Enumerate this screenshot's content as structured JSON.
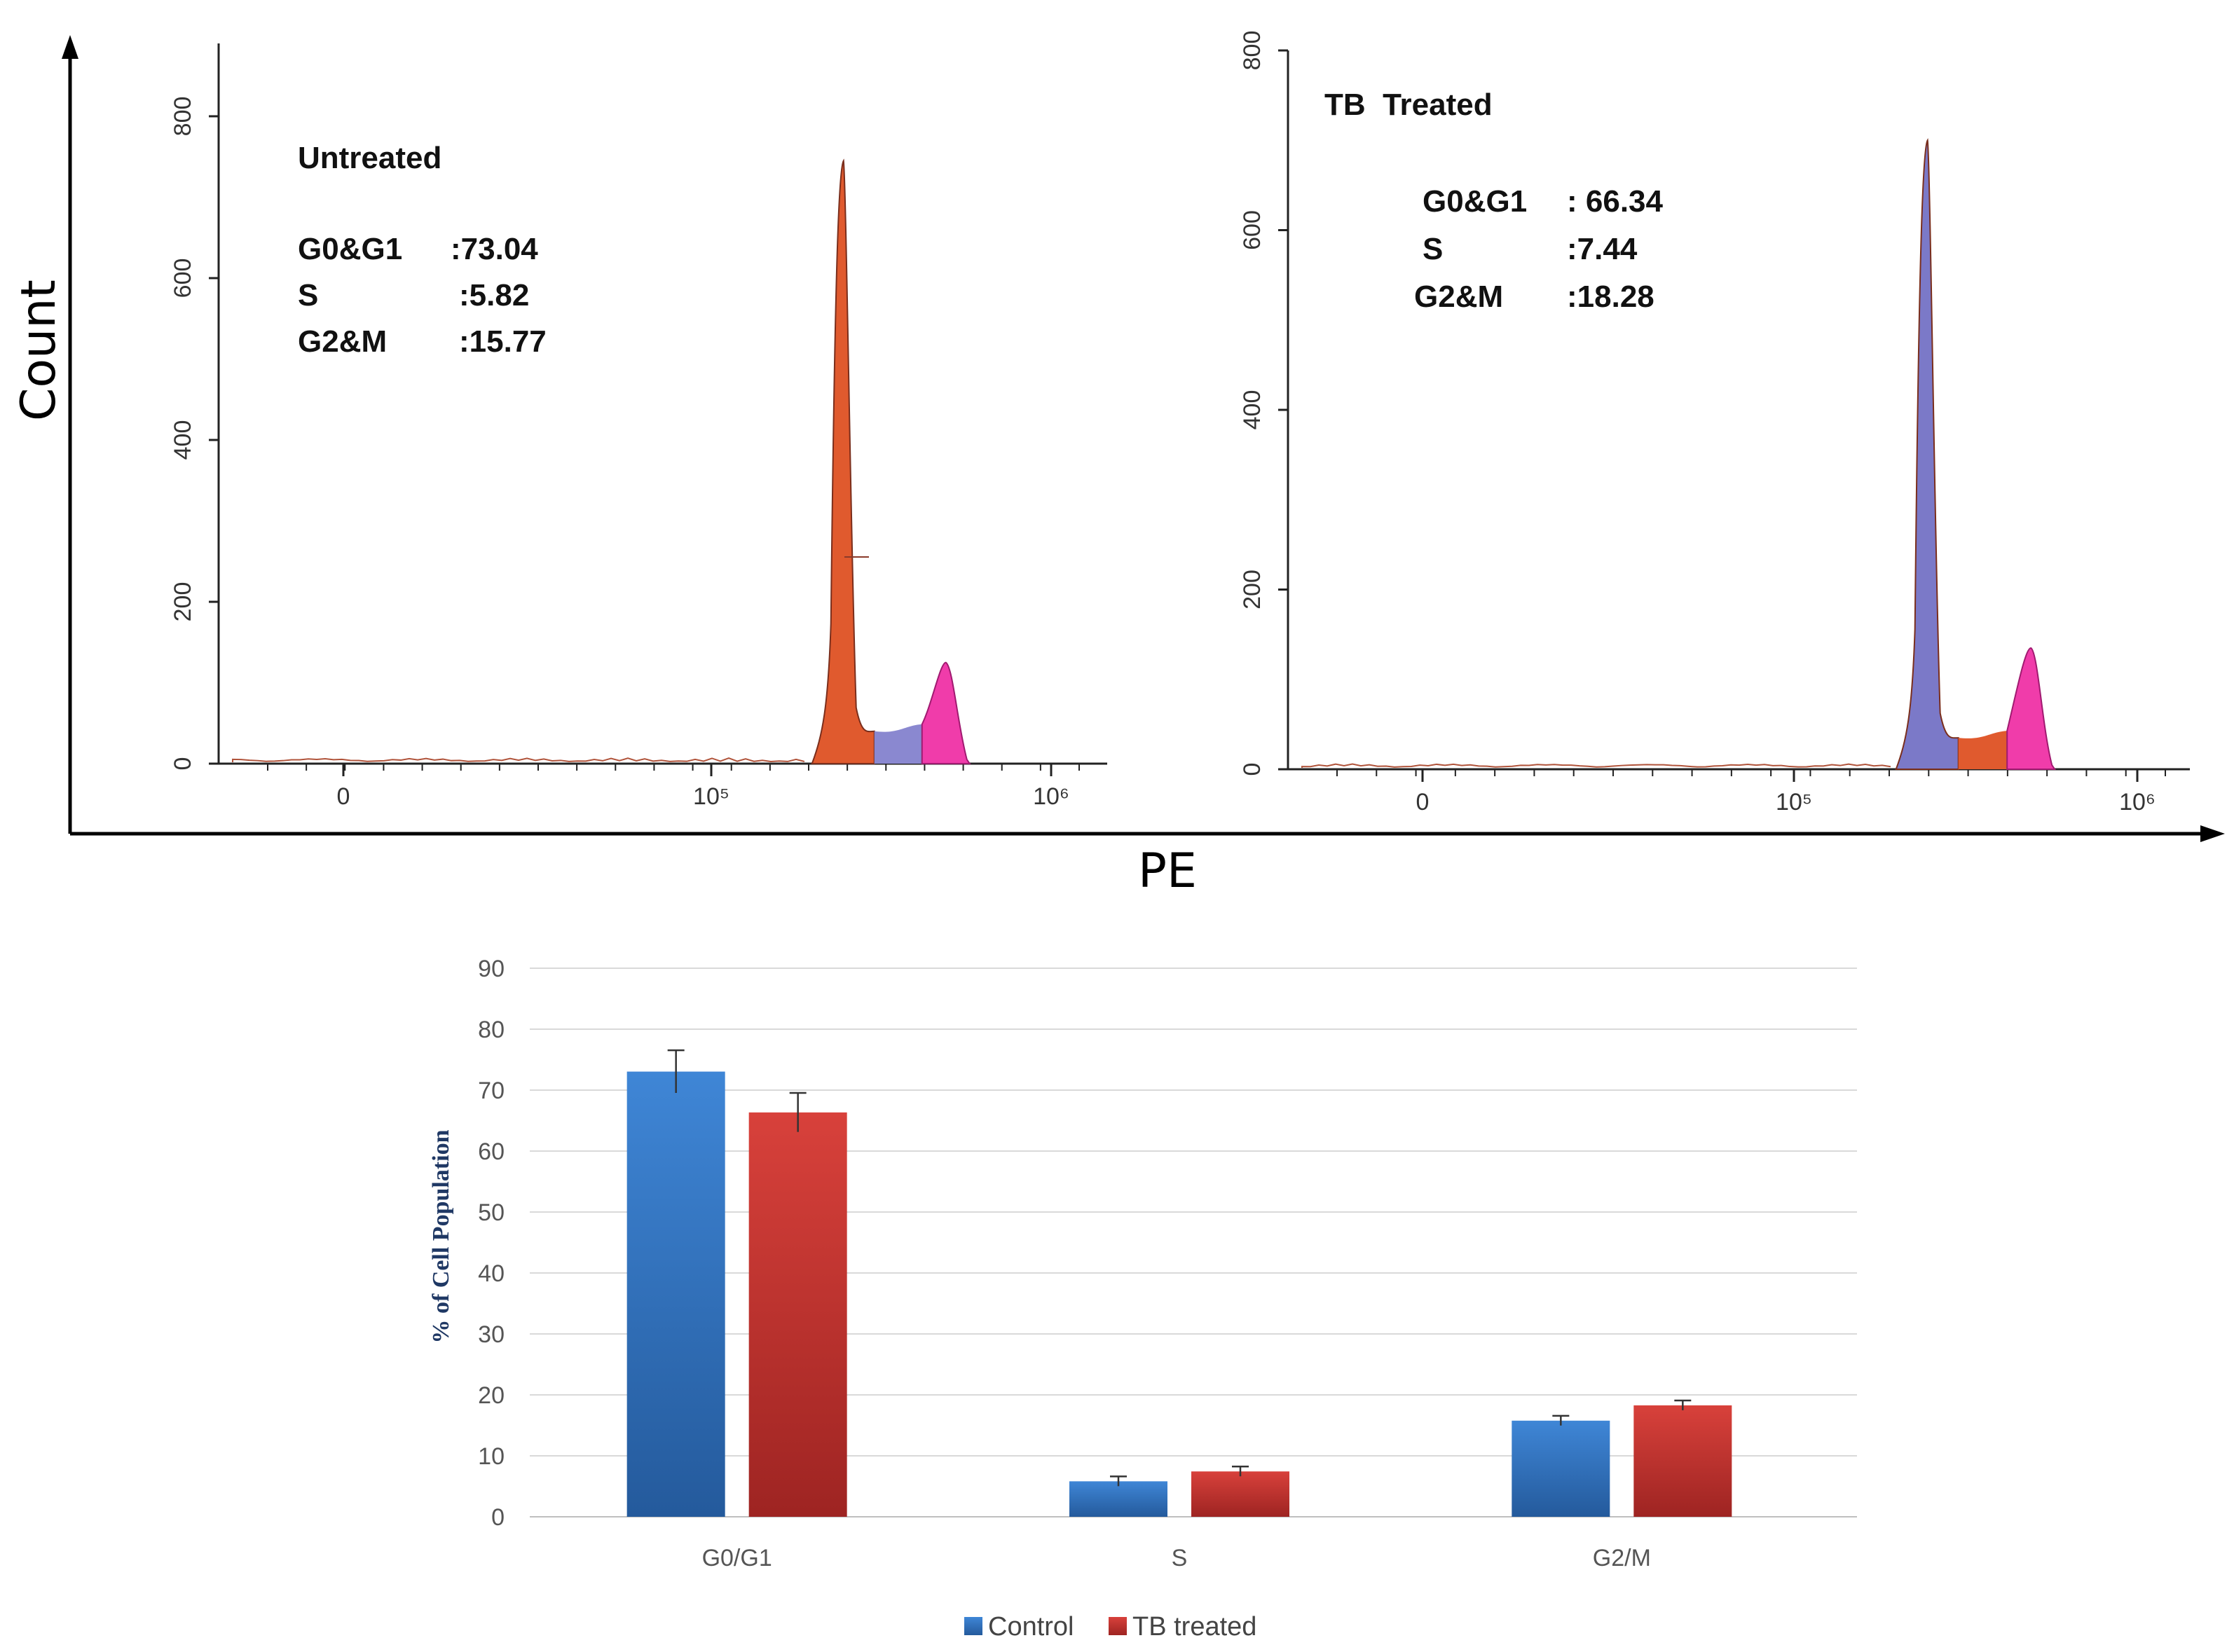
{
  "figure": {
    "y_axis_label": "Count",
    "x_axis_label": "PE"
  },
  "panels": [
    {
      "title": "Untreated",
      "stats": [
        {
          "label": "G0&G1",
          "value": ":73.04"
        },
        {
          "label": "S",
          "value": ":5.82"
        },
        {
          "label": "G2&M",
          "value": ":15.77"
        }
      ]
    },
    {
      "title": "TB  Treated",
      "stats": [
        {
          "label": "G0&G1",
          "value": ": 66.34"
        },
        {
          "label": "S",
          "value": ":7.44"
        },
        {
          "label": "G2&M",
          "value": ":18.28"
        }
      ]
    }
  ],
  "colors": {
    "g1_untreated": "#e05a2e",
    "g1_treated": "#7b79c8",
    "s_phase": "#8a88d0",
    "s_phase_orange": "#e05a2e",
    "g2m": "#f03caa",
    "control": "#2e6fbe",
    "tb_treated": "#c0302e"
  },
  "chart_data": [
    {
      "type": "area",
      "title": "Untreated",
      "ylabel": "Count",
      "xlabel": "PE",
      "ylim": [
        0,
        890
      ],
      "yticks": [
        "0",
        "200",
        "400",
        "600",
        "800"
      ],
      "xticks": [
        "0",
        "10⁵",
        "10⁶"
      ],
      "x_scale": "log",
      "series": [
        {
          "phase": "G0&G1",
          "peak_x": 245000,
          "peak_count": 745
        },
        {
          "phase": "S",
          "count_range": [
            20,
            40
          ]
        },
        {
          "phase": "G2&M",
          "peak_x": 490000,
          "peak_count": 125
        }
      ]
    },
    {
      "type": "area",
      "title": "TB  Treated",
      "ylabel": "Count",
      "xlabel": "PE",
      "ylim": [
        0,
        800
      ],
      "yticks": [
        "0",
        "200",
        "400",
        "600",
        "800"
      ],
      "xticks": [
        "0",
        "10⁵",
        "10⁶"
      ],
      "x_scale": "log",
      "series": [
        {
          "phase": "G0&G1",
          "peak_x": 245000,
          "peak_count": 700
        },
        {
          "phase": "S",
          "count_range": [
            20,
            35
          ]
        },
        {
          "phase": "G2&M",
          "peak_x": 490000,
          "peak_count": 135
        }
      ]
    },
    {
      "type": "bar",
      "categories": [
        "G0/G1",
        "S",
        "G2/M"
      ],
      "series": [
        {
          "name": "Control",
          "values": [
            73.04,
            5.82,
            15.77
          ],
          "errors": [
            3.5,
            0.8,
            0.8
          ]
        },
        {
          "name": "TB treated",
          "values": [
            66.34,
            7.44,
            18.28
          ],
          "errors": [
            3.2,
            0.8,
            0.8
          ]
        }
      ],
      "ylabel": "% of Cell Population",
      "ylim": [
        0,
        90
      ],
      "yticks": [
        "0",
        "10",
        "20",
        "30",
        "40",
        "50",
        "60",
        "70",
        "80",
        "90"
      ],
      "grid": true,
      "legend": "bottom"
    }
  ]
}
